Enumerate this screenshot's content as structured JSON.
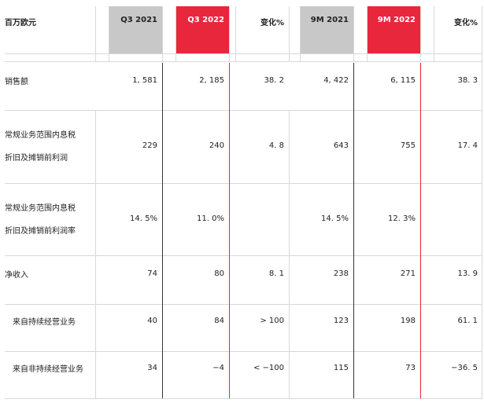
{
  "header": {
    "unit_label": "百万欧元",
    "columns": [
      "Q3 2021",
      "Q3 2022",
      "变化%",
      "9M 2021",
      "9M 2022",
      "变化%"
    ]
  },
  "rows": [
    {
      "label": [
        "销售额"
      ],
      "values": [
        "1, 581",
        "2, 185",
        "38. 2",
        "4, 422",
        "6, 115",
        "38. 3"
      ]
    },
    {
      "label": [
        "常规业务范围内息税",
        "折旧及摊销前利润"
      ],
      "values": [
        "229",
        "240",
        "4. 8",
        "643",
        "755",
        "17. 4"
      ]
    },
    {
      "label": [
        "常规业务范围内息税",
        "折旧及摊销前利润率"
      ],
      "values": [
        "14. 5%",
        "11. 0%",
        "",
        "14. 5%",
        "12. 3%",
        ""
      ]
    },
    {
      "label": [
        "净收入"
      ],
      "values": [
        "74",
        "80",
        "8. 1",
        "238",
        "271",
        "13. 9"
      ]
    },
    {
      "label": [
        "来自持续经营业务"
      ],
      "values": [
        "40",
        "84",
        "> 100",
        "123",
        "198",
        "61. 1"
      ]
    },
    {
      "label": [
        "来自非持续经营业务"
      ],
      "values": [
        "34",
        "−4",
        "< −100",
        "115",
        "73",
        "−36. 5"
      ]
    }
  ]
}
